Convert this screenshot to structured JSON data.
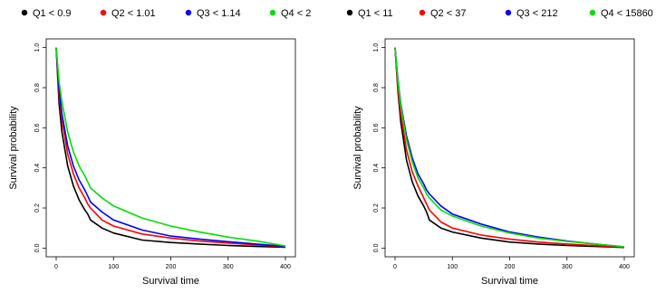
{
  "chart_data": [
    {
      "type": "line",
      "xlabel": "Survival time",
      "ylabel": "Survival probability",
      "xlim": [
        0,
        400
      ],
      "ylim": [
        0,
        1
      ],
      "xticks": [
        "0",
        "100",
        "200",
        "300",
        "400"
      ],
      "yticks": [
        "0.0",
        "0.2",
        "0.4",
        "0.6",
        "0.8",
        "1.0"
      ],
      "grid": false,
      "legend_position": "top",
      "series": [
        {
          "name": "Q1 < 0.9",
          "color": "#000000",
          "x": [
            0,
            5,
            10,
            20,
            30,
            40,
            50,
            55,
            60,
            80,
            100,
            150,
            200,
            250,
            300,
            350,
            400
          ],
          "y": [
            1.0,
            0.72,
            0.58,
            0.41,
            0.31,
            0.24,
            0.19,
            0.17,
            0.14,
            0.1,
            0.075,
            0.04,
            0.028,
            0.02,
            0.013,
            0.008,
            0.004
          ]
        },
        {
          "name": "Q2 < 1.01",
          "color": "#ff0000",
          "x": [
            0,
            5,
            10,
            20,
            30,
            40,
            50,
            55,
            60,
            80,
            100,
            150,
            200,
            250,
            300,
            350,
            400
          ],
          "y": [
            1.0,
            0.76,
            0.64,
            0.47,
            0.37,
            0.3,
            0.25,
            0.22,
            0.2,
            0.14,
            0.11,
            0.07,
            0.05,
            0.035,
            0.025,
            0.016,
            0.006
          ]
        },
        {
          "name": "Q3 < 1.14",
          "color": "#0000ff",
          "x": [
            0,
            5,
            10,
            20,
            30,
            40,
            50,
            55,
            60,
            80,
            100,
            150,
            200,
            250,
            300,
            350,
            400
          ],
          "y": [
            1.0,
            0.79,
            0.67,
            0.51,
            0.41,
            0.34,
            0.29,
            0.26,
            0.23,
            0.18,
            0.14,
            0.09,
            0.06,
            0.045,
            0.032,
            0.02,
            0.008
          ]
        },
        {
          "name": "Q4 < 2",
          "color": "#00e000",
          "x": [
            0,
            5,
            10,
            20,
            30,
            40,
            50,
            55,
            60,
            80,
            100,
            150,
            200,
            250,
            300,
            350,
            400
          ],
          "y": [
            1.0,
            0.83,
            0.73,
            0.58,
            0.48,
            0.41,
            0.36,
            0.33,
            0.3,
            0.25,
            0.21,
            0.15,
            0.11,
            0.08,
            0.055,
            0.035,
            0.01
          ]
        }
      ]
    },
    {
      "type": "line",
      "xlabel": "Survival time",
      "ylabel": "Survival probability",
      "xlim": [
        0,
        400
      ],
      "ylim": [
        0,
        1
      ],
      "xticks": [
        "0",
        "100",
        "200",
        "300",
        "400"
      ],
      "yticks": [
        "0.0",
        "0.2",
        "0.4",
        "0.6",
        "0.8",
        "1.0"
      ],
      "grid": false,
      "legend_position": "top",
      "series": [
        {
          "name": "Q1 < 11",
          "color": "#000000",
          "x": [
            0,
            5,
            10,
            20,
            30,
            40,
            50,
            55,
            60,
            80,
            100,
            150,
            200,
            250,
            300,
            350,
            400
          ],
          "y": [
            1.0,
            0.78,
            0.63,
            0.44,
            0.33,
            0.26,
            0.21,
            0.18,
            0.14,
            0.1,
            0.08,
            0.05,
            0.03,
            0.02,
            0.013,
            0.008,
            0.003
          ]
        },
        {
          "name": "Q2 < 37",
          "color": "#ff0000",
          "x": [
            0,
            5,
            10,
            20,
            30,
            40,
            50,
            55,
            60,
            80,
            100,
            150,
            200,
            250,
            300,
            350,
            400
          ],
          "y": [
            1.0,
            0.8,
            0.67,
            0.49,
            0.38,
            0.31,
            0.25,
            0.22,
            0.19,
            0.13,
            0.1,
            0.065,
            0.045,
            0.03,
            0.02,
            0.012,
            0.004
          ]
        },
        {
          "name": "Q3 < 212",
          "color": "#0000ff",
          "x": [
            0,
            5,
            10,
            20,
            30,
            40,
            50,
            55,
            60,
            80,
            100,
            150,
            200,
            250,
            300,
            350,
            400
          ],
          "y": [
            1.0,
            0.84,
            0.72,
            0.56,
            0.45,
            0.37,
            0.32,
            0.29,
            0.27,
            0.21,
            0.17,
            0.12,
            0.08,
            0.055,
            0.035,
            0.02,
            0.006
          ]
        },
        {
          "name": "Q4 < 15860",
          "color": "#00e000",
          "x": [
            0,
            5,
            10,
            20,
            30,
            40,
            50,
            55,
            60,
            80,
            100,
            150,
            200,
            250,
            300,
            350,
            400
          ],
          "y": [
            1.0,
            0.83,
            0.71,
            0.54,
            0.43,
            0.35,
            0.3,
            0.27,
            0.25,
            0.19,
            0.16,
            0.11,
            0.075,
            0.05,
            0.033,
            0.02,
            0.006
          ]
        }
      ]
    }
  ]
}
